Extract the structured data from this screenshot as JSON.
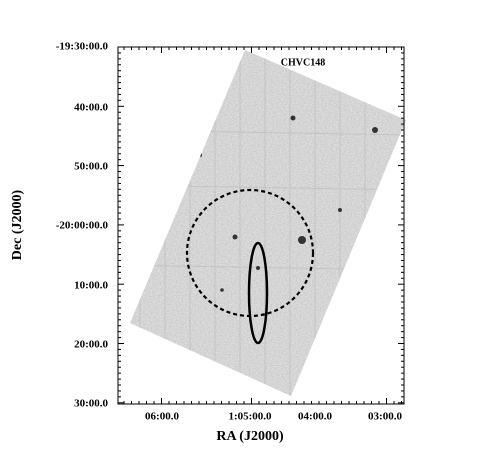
{
  "figure": {
    "label": "CHVC148",
    "x_axis": {
      "label": "RA (J2000)",
      "ticks": [
        "06:00.0",
        "1:05:00.0",
        "04:00.0",
        "03:00.0"
      ]
    },
    "y_axis": {
      "label": "Dec (J2000)",
      "ticks": [
        "-19:30:00.0",
        "40:00.0",
        "50:00.0",
        "-20:00:00.0",
        "10:00.0",
        "20:00.0",
        "30:00.0"
      ]
    }
  }
}
